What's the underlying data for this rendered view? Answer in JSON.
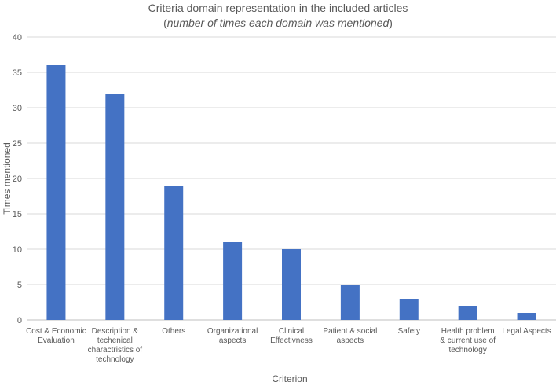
{
  "chart_data": {
    "type": "bar",
    "title": "Criteria domain representation in the included articles",
    "subtitle": "(number of times each domain was mentioned)",
    "subtitle_italic": "number of times each domain was mentioned",
    "xlabel": "Criterion",
    "ylabel": "Times mentioned",
    "ylim": [
      0,
      40
    ],
    "yticks": [
      0,
      5,
      10,
      15,
      20,
      25,
      30,
      35,
      40
    ],
    "grid": true,
    "bar_color": "#4472c4",
    "categories": [
      [
        "Cost & Economic",
        "Evaluation"
      ],
      [
        "Description &",
        "techenical",
        "charactristics of",
        "technology"
      ],
      [
        "Others"
      ],
      [
        "Organizational",
        "aspects"
      ],
      [
        "Clinical",
        "Effectivness"
      ],
      [
        "Patient & social",
        "aspects"
      ],
      [
        "Safety"
      ],
      [
        "Health problem",
        "& current use of",
        "technology"
      ],
      [
        "Legal Aspects"
      ]
    ],
    "values": [
      36,
      32,
      19,
      11,
      10,
      5,
      3,
      2,
      1
    ]
  }
}
